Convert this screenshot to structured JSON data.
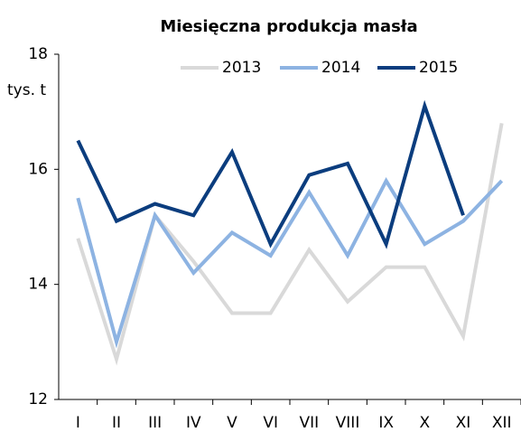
{
  "chart_data": {
    "type": "line",
    "title": "Miesięczna produkcja masła",
    "y_label": "tys. t",
    "categories": [
      "I",
      "II",
      "III",
      "IV",
      "V",
      "VI",
      "VII",
      "VIII",
      "IX",
      "X",
      "XI",
      "XII"
    ],
    "series": [
      {
        "name": "2013",
        "color": "#d9d9d9",
        "values": [
          14.8,
          12.7,
          15.2,
          14.4,
          13.5,
          13.5,
          14.6,
          13.7,
          14.3,
          14.3,
          13.1,
          16.8
        ]
      },
      {
        "name": "2014",
        "color": "#8db3e2",
        "values": [
          15.5,
          13.0,
          15.2,
          14.2,
          14.9,
          14.5,
          15.6,
          14.5,
          15.8,
          14.7,
          15.1,
          15.8
        ]
      },
      {
        "name": "2015",
        "color": "#0b3d7e",
        "values": [
          16.5,
          15.1,
          15.4,
          15.2,
          16.3,
          14.7,
          15.9,
          16.1,
          14.7,
          17.1,
          15.2,
          null
        ]
      }
    ],
    "ylim": [
      12,
      18
    ],
    "yticks": [
      12,
      14,
      16,
      18
    ],
    "legend": "top-right"
  }
}
